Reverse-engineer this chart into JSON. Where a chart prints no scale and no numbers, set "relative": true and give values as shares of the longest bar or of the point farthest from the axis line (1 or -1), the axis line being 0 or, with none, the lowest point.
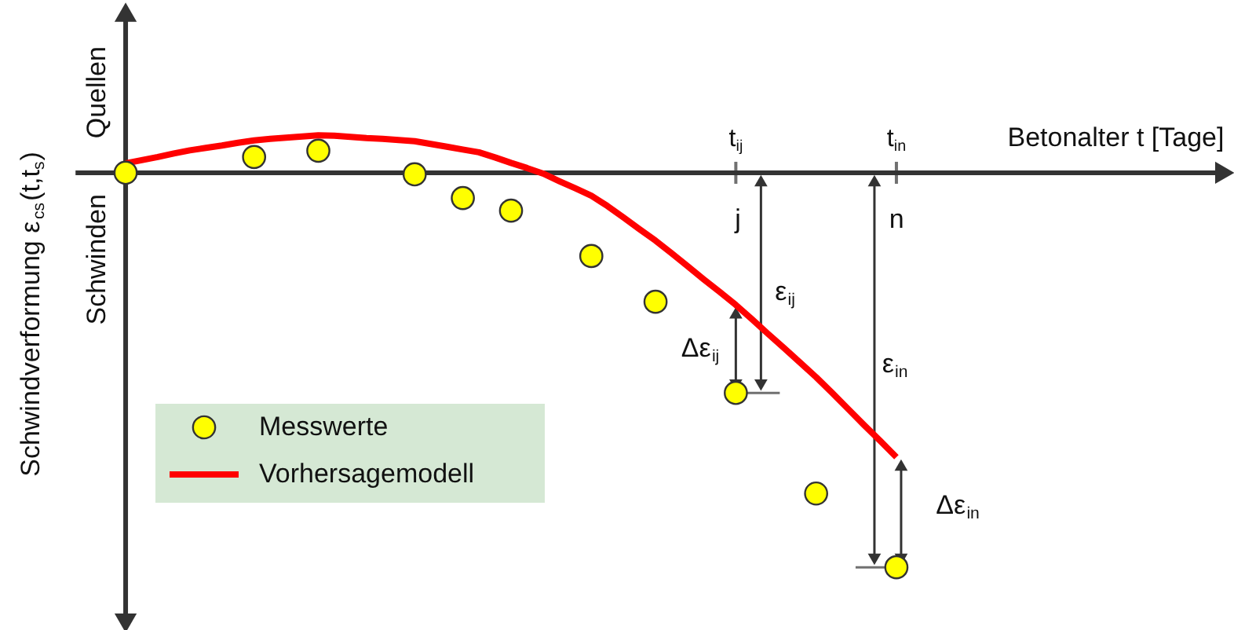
{
  "chart_data": {
    "type": "scatter",
    "relative": true,
    "xlabel": "Betonalter t [Tage]",
    "ylabel": "Schwindverformung ε$_{cs}$(t,t$_{s}$)",
    "categories": [
      null,
      null,
      null,
      null,
      null,
      null,
      null,
      null,
      null,
      null,
      null,
      null,
      null,
      null,
      null,
      null,
      null,
      null,
      null,
      null,
      null,
      null,
      null,
      null,
      null,
      null,
      null,
      null,
      null,
      null,
      null,
      null,
      null,
      null,
      null,
      null,
      null,
      null,
      "t$_{ij}$",
      null,
      null,
      null,
      null,
      null,
      null,
      null,
      null,
      null,
      "t$_{in}$"
    ],
    "series": [
      {
        "name": "Messwerte",
        "marker": "circle",
        "color": "#ffff00",
        "values": [
          0,
          null,
          null,
          null,
          null,
          null,
          null,
          null,
          0.04,
          null,
          null,
          null,
          0.056,
          null,
          null,
          null,
          null,
          null,
          -0.004,
          null,
          null,
          -0.064,
          null,
          null,
          -0.096,
          null,
          null,
          null,
          null,
          -0.211,
          null,
          null,
          null,
          -0.327,
          null,
          null,
          null,
          null,
          -0.558,
          null,
          null,
          null,
          null,
          -0.813,
          null,
          null,
          null,
          null,
          -1
        ]
      },
      {
        "name": "Vorhersagemodell",
        "type": "line",
        "color": "#ff0000",
        "values": [
          0.024,
          0.032,
          0.04,
          0.049,
          0.057,
          0.063,
          0.069,
          0.076,
          0.082,
          0.086,
          0.089,
          0.092,
          0.095,
          0.094,
          0.091,
          0.088,
          0.086,
          0.083,
          0.08,
          0.073,
          0.066,
          0.059,
          0.052,
          0.039,
          0.025,
          0.012,
          -0.002,
          -0.021,
          -0.039,
          -0.058,
          -0.084,
          -0.113,
          -0.143,
          -0.172,
          -0.204,
          -0.237,
          -0.27,
          -0.302,
          -0.335,
          -0.371,
          -0.408,
          -0.444,
          -0.481,
          -0.518,
          -0.558,
          -0.599,
          -0.64,
          -0.68,
          -0.721
        ]
      }
    ],
    "annotations": [
      "Quellen",
      "Schwinden",
      "j",
      "n",
      "ε$_{ij}$",
      "Δε$_{ij}$",
      "ε$_{in}$",
      "Δε$_{in}$"
    ],
    "legend": "bottom left"
  }
}
